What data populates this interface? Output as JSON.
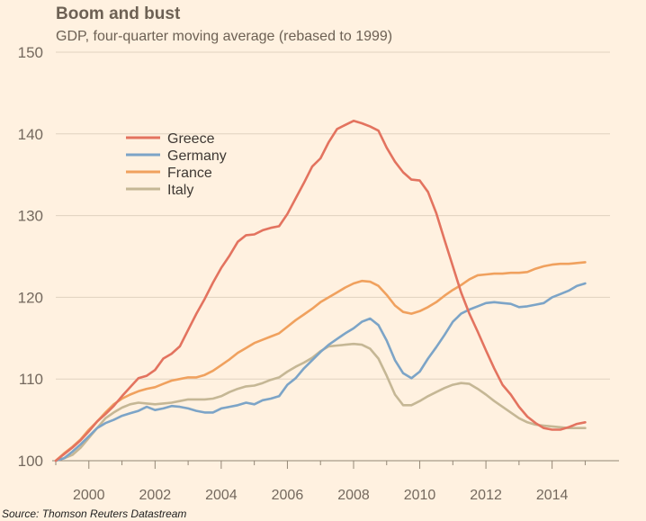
{
  "chart_data": {
    "type": "line",
    "title": "Boom and bust",
    "subtitle": "GDP, four-quarter moving average (rebased to 1999)",
    "source": "Source: Thomson Reuters Datastream",
    "xlabel": "",
    "ylabel": "",
    "xlim": [
      1999.0,
      2015.75
    ],
    "ylim": [
      100,
      150
    ],
    "yticks": [
      100,
      110,
      120,
      130,
      140,
      150
    ],
    "xticks": [
      2000,
      2002,
      2004,
      2006,
      2008,
      2010,
      2012,
      2014
    ],
    "grid": true,
    "legend_position": "top-left",
    "x": [
      1999.0,
      1999.25,
      1999.5,
      1999.75,
      2000.0,
      2000.25,
      2000.5,
      2000.75,
      2001.0,
      2001.25,
      2001.5,
      2001.75,
      2002.0,
      2002.25,
      2002.5,
      2002.75,
      2003.0,
      2003.25,
      2003.5,
      2003.75,
      2004.0,
      2004.25,
      2004.5,
      2004.75,
      2005.0,
      2005.25,
      2005.5,
      2005.75,
      2006.0,
      2006.25,
      2006.5,
      2006.75,
      2007.0,
      2007.25,
      2007.5,
      2007.75,
      2008.0,
      2008.25,
      2008.5,
      2008.75,
      2009.0,
      2009.25,
      2009.5,
      2009.75,
      2010.0,
      2010.25,
      2010.5,
      2010.75,
      2011.0,
      2011.25,
      2011.5,
      2011.75,
      2012.0,
      2012.25,
      2012.5,
      2012.75,
      2013.0,
      2013.25,
      2013.5,
      2013.75,
      2014.0,
      2014.25,
      2014.5,
      2014.75,
      2015.0
    ],
    "series": [
      {
        "name": "Greece",
        "color": "#e3735f",
        "values": [
          100.0,
          100.8,
          101.6,
          102.5,
          103.6,
          104.8,
          105.7,
          106.7,
          107.9,
          109.0,
          110.1,
          110.4,
          111.1,
          112.5,
          113.1,
          114.0,
          116.0,
          118.0,
          119.8,
          121.8,
          123.6,
          125.1,
          126.8,
          127.6,
          127.7,
          128.2,
          128.5,
          128.7,
          130.2,
          132.1,
          134.0,
          136.0,
          137.0,
          139.0,
          140.6,
          141.1,
          141.6,
          141.3,
          140.9,
          140.4,
          138.3,
          136.6,
          135.3,
          134.4,
          134.3,
          132.9,
          130.3,
          127.0,
          123.8,
          120.6,
          118.0,
          115.8,
          113.5,
          111.3,
          109.3,
          108.1,
          106.6,
          105.4,
          104.6,
          104.0,
          103.8,
          103.8,
          104.1,
          104.5,
          104.7
        ]
      },
      {
        "name": "Germany",
        "color": "#7ca4c7",
        "values": [
          100.0,
          100.3,
          101.1,
          102.0,
          103.0,
          104.0,
          104.6,
          105.0,
          105.5,
          105.8,
          106.1,
          106.6,
          106.2,
          106.4,
          106.7,
          106.6,
          106.4,
          106.1,
          105.9,
          105.9,
          106.4,
          106.6,
          106.8,
          107.1,
          106.9,
          107.4,
          107.6,
          107.9,
          109.3,
          110.1,
          111.3,
          112.3,
          113.3,
          114.2,
          114.9,
          115.6,
          116.2,
          117.0,
          117.4,
          116.6,
          114.7,
          112.3,
          110.7,
          110.1,
          110.9,
          112.5,
          113.9,
          115.4,
          117.0,
          118.0,
          118.5,
          118.9,
          119.3,
          119.4,
          119.3,
          119.2,
          118.8,
          118.9,
          119.1,
          119.3,
          120.0,
          120.4,
          120.8,
          121.4,
          121.7
        ]
      },
      {
        "name": "France",
        "color": "#f0a15e",
        "values": [
          100.0,
          100.9,
          101.7,
          102.6,
          103.8,
          104.8,
          105.9,
          106.9,
          107.6,
          108.1,
          108.5,
          108.8,
          109.0,
          109.4,
          109.8,
          110.0,
          110.2,
          110.2,
          110.5,
          111.0,
          111.7,
          112.4,
          113.2,
          113.8,
          114.4,
          114.8,
          115.2,
          115.6,
          116.4,
          117.2,
          117.9,
          118.6,
          119.4,
          120.0,
          120.6,
          121.2,
          121.7,
          122.0,
          121.9,
          121.4,
          120.3,
          119.0,
          118.2,
          118.0,
          118.3,
          118.8,
          119.4,
          120.2,
          120.9,
          121.5,
          122.2,
          122.7,
          122.8,
          122.9,
          122.9,
          123.0,
          123.0,
          123.1,
          123.5,
          123.8,
          124.0,
          124.1,
          124.1,
          124.2,
          124.3
        ]
      },
      {
        "name": "Italy",
        "color": "#c5b795",
        "values": [
          100.0,
          100.3,
          100.7,
          101.6,
          102.8,
          104.0,
          105.2,
          105.9,
          106.5,
          106.9,
          107.1,
          107.0,
          106.9,
          107.0,
          107.1,
          107.3,
          107.5,
          107.5,
          107.5,
          107.6,
          107.9,
          108.4,
          108.8,
          109.1,
          109.2,
          109.5,
          109.9,
          110.2,
          110.9,
          111.5,
          112.0,
          112.6,
          113.4,
          114.0,
          114.1,
          114.2,
          114.3,
          114.2,
          113.7,
          112.5,
          110.4,
          108.1,
          106.8,
          106.8,
          107.3,
          107.9,
          108.4,
          108.9,
          109.3,
          109.5,
          109.4,
          108.8,
          108.1,
          107.3,
          106.6,
          105.9,
          105.2,
          104.7,
          104.4,
          104.3,
          104.2,
          104.1,
          104.0,
          104.0,
          104.0
        ]
      }
    ]
  }
}
